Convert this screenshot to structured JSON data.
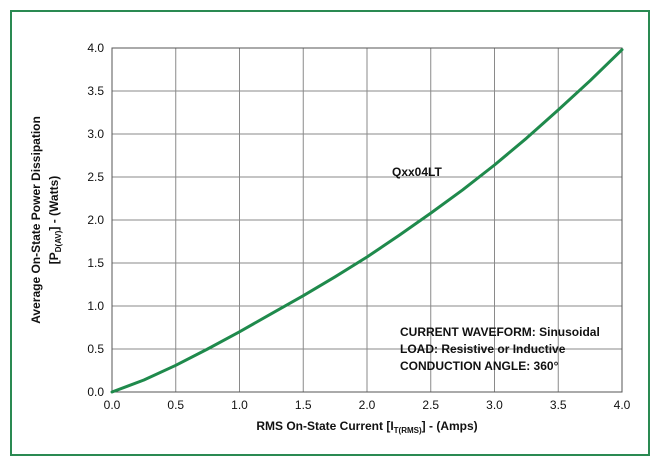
{
  "frame_color": "#2a8a52",
  "chart_data": {
    "type": "line",
    "title": "",
    "xlabel": {
      "main": "RMS On-State Current [I",
      "sub": "T(RMS)",
      "tail": "] - (Amps)"
    },
    "ylabel": {
      "line1": "Average On-State Power Dissipation",
      "line2_main": "[P",
      "line2_sub": "D(AV)",
      "line2_tail": "] - (Watts)"
    },
    "xlim": [
      0.0,
      4.0
    ],
    "ylim": [
      0.0,
      4.0
    ],
    "xticks": [
      "0.0",
      "0.5",
      "1.0",
      "1.5",
      "2.0",
      "2.5",
      "3.0",
      "3.5",
      "4.0"
    ],
    "yticks": [
      "0.0",
      "0.5",
      "1.0",
      "1.5",
      "2.0",
      "2.5",
      "3.0",
      "3.5",
      "4.0"
    ],
    "grid": true,
    "series": [
      {
        "name": "Qxx04LT",
        "color": "#1f8a4c",
        "x": [
          0.0,
          0.25,
          0.5,
          0.75,
          1.0,
          1.25,
          1.5,
          1.75,
          2.0,
          2.25,
          2.5,
          2.75,
          3.0,
          3.25,
          3.5,
          3.75,
          4.0
        ],
        "y": [
          0.0,
          0.14,
          0.31,
          0.5,
          0.7,
          0.91,
          1.12,
          1.34,
          1.57,
          1.82,
          2.08,
          2.35,
          2.64,
          2.95,
          3.28,
          3.62,
          3.98
        ]
      }
    ],
    "annotations": [
      "CURRENT WAVEFORM: Sinusoidal",
      "LOAD: Resistive or Inductive",
      "CONDUCTION ANGLE: 360°"
    ]
  }
}
